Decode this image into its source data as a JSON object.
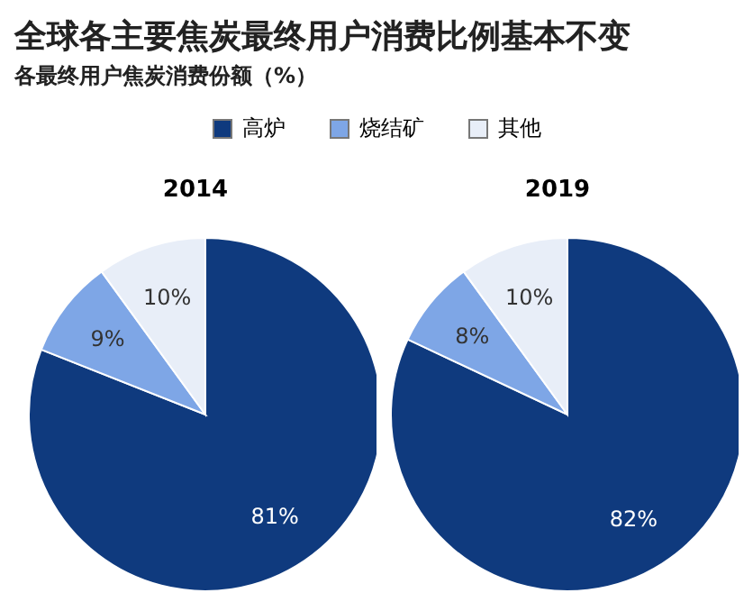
{
  "chart_data": [
    {
      "type": "pie",
      "title": "全球各主要焦炭最终用户消费比例基本不变",
      "subtitle": "各最终用户焦炭消费份额（%）",
      "annotations": [
        "2014"
      ],
      "categories": [
        "高炉",
        "烧结矿",
        "其他"
      ],
      "values": [
        81,
        9,
        10
      ],
      "colors": [
        "#0f3a7e",
        "#7ea6e6",
        "#e8eef8"
      ],
      "value_labels": [
        "81%",
        "9%",
        "10%"
      ],
      "legend": "top"
    },
    {
      "type": "pie",
      "annotations": [
        "2019"
      ],
      "categories": [
        null,
        null,
        null
      ],
      "values": [
        82,
        8,
        10
      ],
      "colors": [
        "#0f3a7e",
        "#7ea6e6",
        "#e8eef8"
      ],
      "value_labels": [
        "82%",
        "8%",
        "10%"
      ]
    }
  ]
}
